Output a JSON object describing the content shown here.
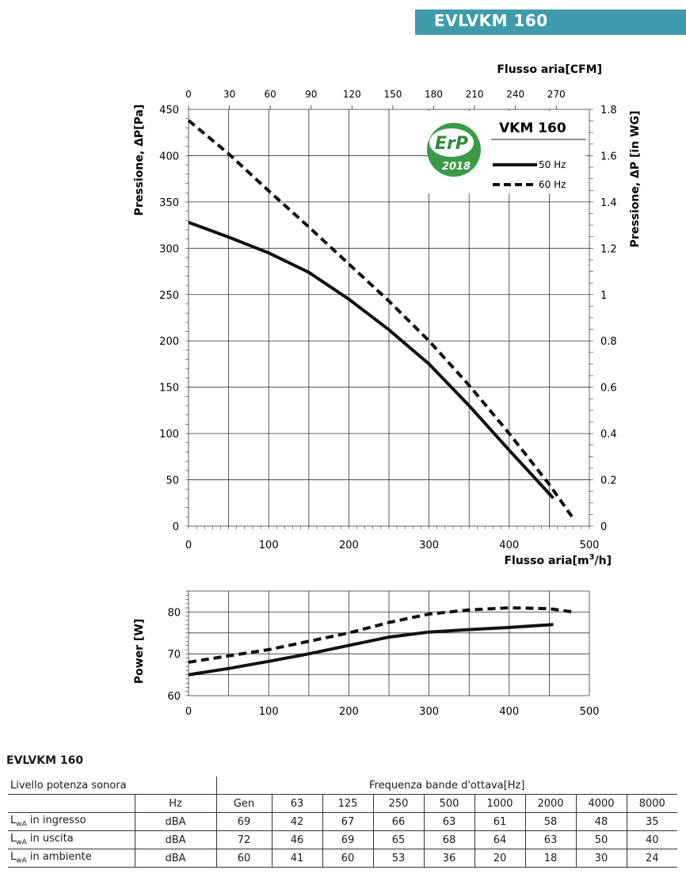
{
  "header": {
    "title": "EVLVKM  160"
  },
  "chart_data": [
    {
      "type": "line",
      "top_axis_label": "Flusso aria[CFM]",
      "top_ticks": [
        0,
        30,
        60,
        90,
        120,
        150,
        180,
        210,
        240,
        270
      ],
      "xlabel": "Flusso aria[m³/h]",
      "ylabel": "Pressione, ΔP[Pa]",
      "right_axis_label": "Pressione, ΔP [in WG]",
      "xlim": [
        0,
        500
      ],
      "ylim": [
        0,
        450
      ],
      "x_ticks": [
        0,
        100,
        200,
        300,
        400,
        500
      ],
      "y_ticks": [
        0,
        50,
        100,
        150,
        200,
        250,
        300,
        350,
        400,
        450
      ],
      "right_ticks": [
        "0",
        "0.2",
        "0.4",
        "0.6",
        "0.8",
        "1",
        "1.2",
        "1.4",
        "1.6",
        "1.8"
      ],
      "right_range": [
        0,
        1.8
      ],
      "grid": true,
      "legend_title": "VKM  160",
      "badge": {
        "top": "ErP",
        "bottom": "2018"
      },
      "series": [
        {
          "name": "50 Hz",
          "style": "solid",
          "x": [
            0,
            50,
            100,
            150,
            200,
            250,
            300,
            350,
            400,
            450,
            455
          ],
          "y": [
            328,
            312,
            295,
            274,
            245,
            212,
            175,
            130,
            82,
            35,
            30
          ]
        },
        {
          "name": "60 Hz",
          "style": "dashed",
          "x": [
            0,
            50,
            100,
            150,
            200,
            250,
            300,
            350,
            400,
            450,
            480
          ],
          "y": [
            438,
            402,
            362,
            323,
            283,
            243,
            200,
            152,
            100,
            45,
            8
          ]
        }
      ]
    },
    {
      "type": "line",
      "ylabel": "Power [W]",
      "xlim": [
        0,
        500
      ],
      "ylim": [
        60,
        85
      ],
      "x_ticks": [
        0,
        100,
        200,
        300,
        400,
        500
      ],
      "y_ticks": [
        60,
        70,
        80
      ],
      "grid": true,
      "series": [
        {
          "name": "50 Hz",
          "style": "solid",
          "x": [
            0,
            50,
            100,
            150,
            200,
            250,
            300,
            350,
            400,
            455
          ],
          "y": [
            65,
            66.5,
            68.2,
            70,
            72,
            74,
            75.2,
            75.8,
            76.3,
            77
          ]
        },
        {
          "name": "60 Hz",
          "style": "dashed",
          "x": [
            0,
            50,
            100,
            150,
            200,
            250,
            300,
            350,
            400,
            450,
            480
          ],
          "y": [
            68,
            69.5,
            71,
            73,
            75,
            77.5,
            79.5,
            80.5,
            81,
            80.8,
            80
          ]
        }
      ]
    }
  ],
  "sound_table": {
    "title": "EVLVKM  160",
    "label": "Livello potenza sonora",
    "freq_header": "Frequenza bande d'ottava[Hz]",
    "unit_header": "Hz",
    "columns": [
      "Gen",
      "63",
      "125",
      "250",
      "500",
      "1000",
      "2000",
      "4000",
      "8000"
    ],
    "rows": [
      {
        "label_main": "L",
        "label_sub": "wA",
        "label_rest": " in ingresso",
        "unit": "dBA",
        "values": [
          "69",
          "42",
          "67",
          "66",
          "63",
          "61",
          "58",
          "48",
          "35"
        ]
      },
      {
        "label_main": "L",
        "label_sub": "wA",
        "label_rest": " in uscita",
        "unit": "dBA",
        "values": [
          "72",
          "46",
          "69",
          "65",
          "68",
          "64",
          "63",
          "50",
          "40"
        ]
      },
      {
        "label_main": "L",
        "label_sub": "wA",
        "label_rest": " in ambiente",
        "unit": "dBA",
        "values": [
          "60",
          "41",
          "60",
          "53",
          "36",
          "20",
          "18",
          "30",
          "24"
        ]
      }
    ]
  }
}
